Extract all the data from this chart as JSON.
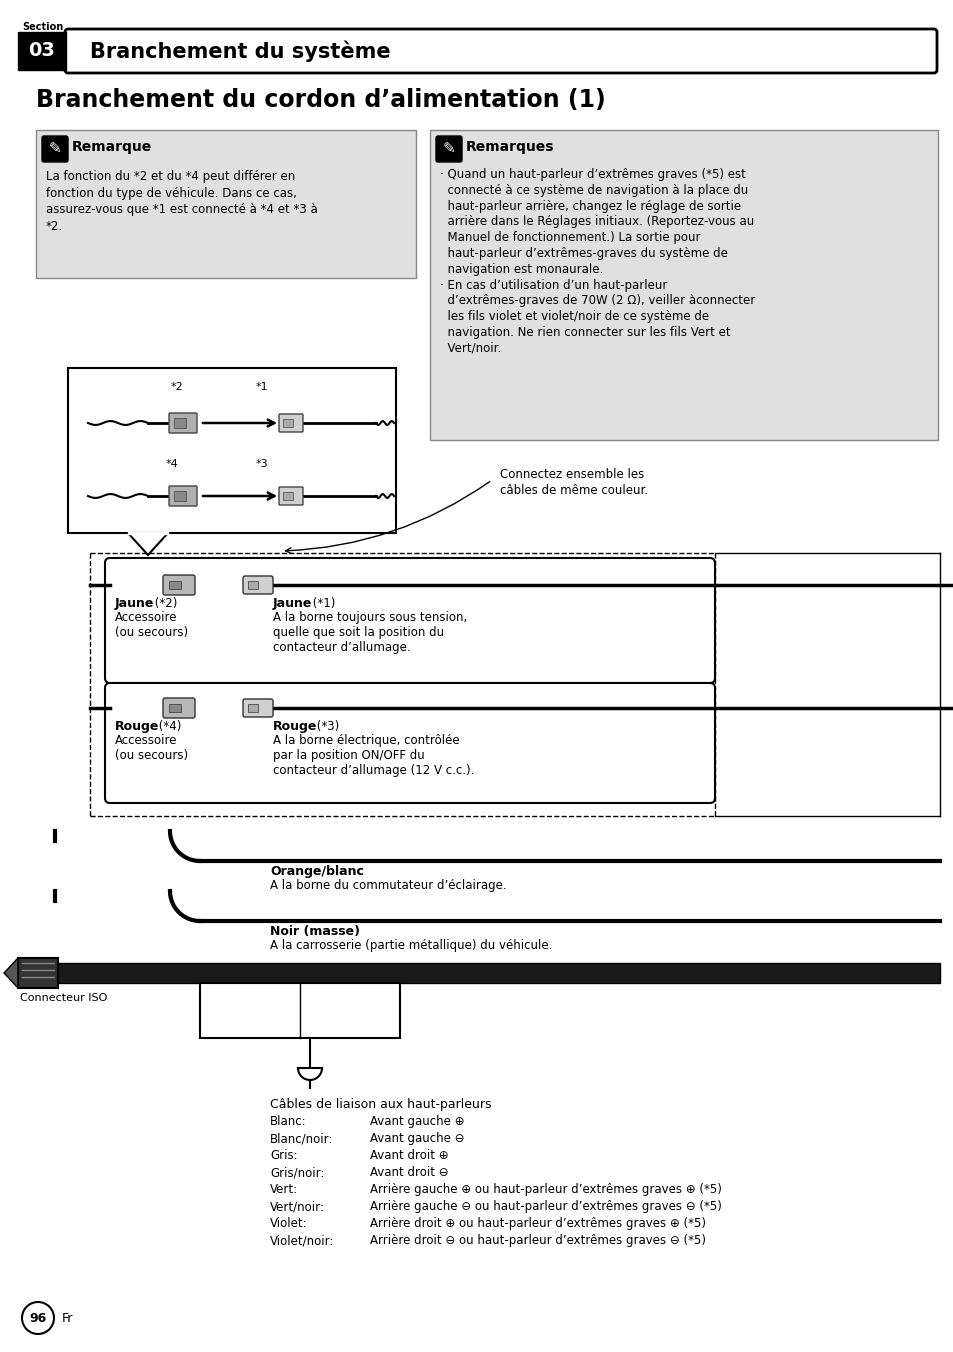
{
  "section_num": "03",
  "section_title": "Branchement du système",
  "page_title": "Branchement du cordon d’alimentation (1)",
  "note1_title": "Remarque",
  "note1_lines": [
    "La fonction du *2 et du *4 peut différer en",
    "fonction du type de véhicule. Dans ce cas,",
    "assurez-vous que *1 est connecté à *4 et *3 à",
    "*2."
  ],
  "note2_title": "Remarques",
  "note2_lines": [
    "· Quand un haut-parleur d’extrêmes graves (*5) est",
    "  connecté à ce système de navigation à la place du",
    "  haut-parleur arrière, changez le réglage de sortie",
    "  arrière dans le Réglages initiaux. (Reportez-vous au",
    "  Manuel de fonctionnement.) La sortie pour",
    "  haut-parleur d’extrêmes-graves du système de",
    "  navigation est monaurale.",
    "· En cas d’utilisation d’un haut-parleur",
    "  d’extrêmes-graves de 70W (2 Ω), veiller àconnecter",
    "  les fils violet et violet/noir de ce système de",
    "  navigation. Ne rien connecter sur les fils Vert et",
    "  Vert/noir."
  ],
  "connect_label1": "Connectez ensemble les",
  "connect_label2": "câbles de même couleur.",
  "jaune2_bold": "Jaune",
  "jaune2_sup": " (*2)",
  "jaune2_sub": [
    "Accessoire",
    "(ou secours)"
  ],
  "jaune1_bold": "Jaune",
  "jaune1_sup": " (*1)",
  "jaune1_sub": [
    "A la borne toujours sous tension,",
    "quelle que soit la position du",
    "contacteur d’allumage."
  ],
  "rouge4_bold": "Rouge",
  "rouge4_sup": " (*4)",
  "rouge4_sub": [
    "Accessoire",
    "(ou secours)"
  ],
  "rouge3_bold": "Rouge",
  "rouge3_sup": " (*3)",
  "rouge3_sub": [
    "A la borne électrique, contrôlée",
    "par la position ON/OFF du",
    "contacteur d’allumage (12 V c.c.)."
  ],
  "orange_bold": "Orange/blanc",
  "orange_sub": "A la borne du commutateur d’éclairage.",
  "noir_bold": "Noir (masse)",
  "noir_sub": "A la carrosserie (partie métallique) du véhicule.",
  "iso_label": "Connecteur ISO",
  "speaker_title": "Câbles de liaison aux haut-parleurs",
  "speaker_lines": [
    [
      "Blanc:",
      "Avant gauche ⊕"
    ],
    [
      "Blanc/noir:",
      "Avant gauche ⊖"
    ],
    [
      "Gris:",
      "Avant droit ⊕"
    ],
    [
      "Gris/noir:",
      "Avant droit ⊖"
    ],
    [
      "Vert:",
      "Arrière gauche ⊕ ou haut-parleur d’extrêmes graves ⊕ (*5)"
    ],
    [
      "Vert/noir:",
      "Arrière gauche ⊖ ou haut-parleur d’extrêmes graves ⊖ (*5)"
    ],
    [
      "Violet:",
      "Arrière droit ⊕ ou haut-parleur d’extrêmes graves ⊕ (*5)"
    ],
    [
      "Violet/noir:",
      "Arrière droit ⊖ ou haut-parleur d’extrêmes graves ⊖ (*5)"
    ]
  ],
  "page_num": "96",
  "bg_color": "#ffffff",
  "note_bg": "#e0e0e0",
  "header_bg": "#000000"
}
